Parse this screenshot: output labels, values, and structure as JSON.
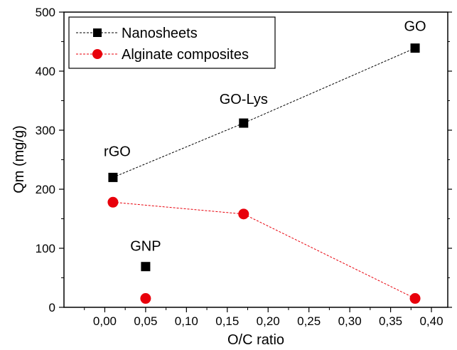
{
  "chart_data": {
    "type": "scatter",
    "xlabel": "O/C ratio",
    "ylabel": "Qm (mg/g)",
    "xlim": [
      -0.05,
      0.42
    ],
    "ylim": [
      0,
      500
    ],
    "x_ticks": [
      "0,00",
      "0,05",
      "0,10",
      "0,15",
      "0,20",
      "0,25",
      "0,30",
      "0,35",
      "0,40"
    ],
    "x_tick_values": [
      0.0,
      0.05,
      0.1,
      0.15,
      0.2,
      0.25,
      0.3,
      0.35,
      0.4
    ],
    "y_ticks": [
      "0",
      "100",
      "200",
      "300",
      "400",
      "500"
    ],
    "y_tick_values": [
      0,
      100,
      200,
      300,
      400,
      500
    ],
    "legend_position": "top-left",
    "grid": false,
    "series": [
      {
        "name": "Nanosheets",
        "marker": "square",
        "color": "#000000",
        "points": [
          {
            "x": 0.01,
            "y": 220,
            "connected": true
          },
          {
            "x": 0.17,
            "y": 312,
            "connected": true
          },
          {
            "x": 0.38,
            "y": 439,
            "connected": true
          },
          {
            "x": 0.05,
            "y": 69,
            "connected": false
          }
        ]
      },
      {
        "name": "Alginate composites",
        "marker": "circle",
        "color": "#e8000b",
        "points": [
          {
            "x": 0.01,
            "y": 178,
            "connected": true
          },
          {
            "x": 0.17,
            "y": 158,
            "connected": true
          },
          {
            "x": 0.38,
            "y": 15,
            "connected": true
          },
          {
            "x": 0.05,
            "y": 15,
            "connected": false
          }
        ]
      }
    ],
    "annotations": [
      {
        "text": "GO",
        "x": 0.38,
        "y": 439
      },
      {
        "text": "GO-Lys",
        "x": 0.17,
        "y": 312
      },
      {
        "text": "rGO",
        "x": 0.01,
        "y": 220
      },
      {
        "text": "GNP",
        "x": 0.05,
        "y": 69
      }
    ]
  }
}
